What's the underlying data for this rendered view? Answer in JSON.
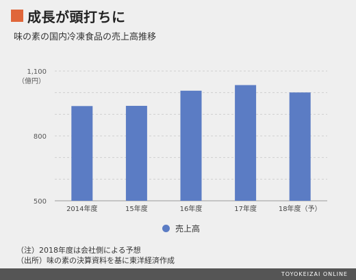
{
  "header": {
    "title": "成長が頭打ちに",
    "subtitle": "味の素の国内冷凍食品の売上高推移"
  },
  "colors": {
    "accent": "#e0663a",
    "bar": "#5b7cc4",
    "footer_bg": "#555555"
  },
  "notes": [
    "（注）2018年度は会社側による予想",
    "（出所）味の素の決算資料を基に東洋経済作成"
  ],
  "footer": {
    "brand": "TOYOKEIZAI ONLINE"
  },
  "chart_data": {
    "type": "bar",
    "categories": [
      "2014年度",
      "15年度",
      "16年度",
      "17年度",
      "18年度（予）"
    ],
    "series": [
      {
        "name": "売上高",
        "values": [
          938,
          939,
          1009,
          1035,
          1001
        ]
      }
    ],
    "yunit": "（億円）",
    "ylim": [
      500,
      1100
    ],
    "yticks": [
      "500",
      "800",
      "1,100"
    ],
    "grid": true,
    "legend_position": "bottom"
  }
}
